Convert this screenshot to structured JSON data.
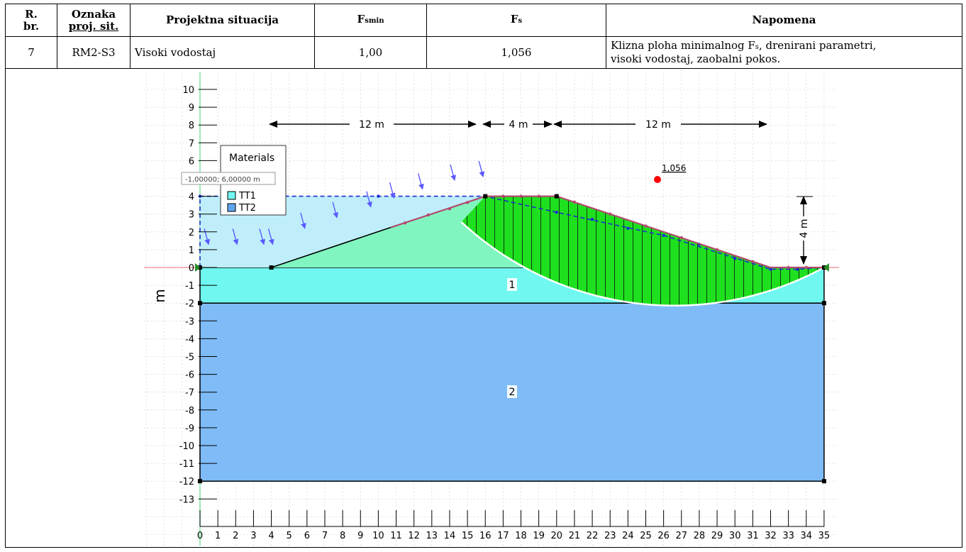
{
  "table": {
    "headers": {
      "rbr_line1": "R.",
      "rbr_line2": "br.",
      "oznaka_line1": "Oznaka",
      "oznaka_line2": "proj. sit.",
      "situacija": "Projektna situacija",
      "fsmin_main": "F",
      "fsmin_sub": "smin",
      "fs_main": "F",
      "fs_sub": "s",
      "napomena": "Napomena"
    },
    "row": {
      "rbr": "7",
      "oznaka": "RM2-S3",
      "situacija": "Visoki vodostaj",
      "fsmin": "1,00",
      "fs": "1,056",
      "napomena_line1_a": "Klizna ploha minimalnog F",
      "napomena_line1_sub": "s",
      "napomena_line1_b": ", drenirani parametri,",
      "napomena_line2": "visoki vodostaj, zaobalni pokos."
    }
  },
  "figure": {
    "axis_unit": "m",
    "x_ticks": [
      "0",
      "1",
      "2",
      "3",
      "4",
      "5",
      "6",
      "7",
      "8",
      "9",
      "10",
      "11",
      "12",
      "13",
      "14",
      "15",
      "16",
      "17",
      "18",
      "19",
      "20",
      "21",
      "22",
      "23",
      "24",
      "25",
      "26",
      "27",
      "28",
      "29",
      "30",
      "31",
      "32",
      "33",
      "34",
      "35"
    ],
    "y_ticks": [
      "10",
      "9",
      "8",
      "7",
      "6",
      "5",
      "4",
      "3",
      "2",
      "1",
      "0",
      "-1",
      "-2",
      "-3",
      "-4",
      "-5",
      "-6",
      "-7",
      "-8",
      "-9",
      "-10",
      "-11",
      "-12",
      "-13"
    ],
    "dim_top_left": "12 m",
    "dim_top_mid": "4 m",
    "dim_top_right": "12 m",
    "dim_right": "4 m",
    "fs_label": "1,056",
    "region_label_1": "1",
    "region_label_2": "2",
    "coord_tooltip": "-1,00000; 6,00000 m",
    "legend": {
      "title": "Materials",
      "items": [
        {
          "name": "TT1",
          "color": "#6ff7f0"
        },
        {
          "name": "TT2",
          "color": "#5fa6ef"
        }
      ]
    },
    "colors": {
      "tt1": "#6ff7f0",
      "tt2": "#7fbcf7",
      "water": "#bfeefa",
      "embankment": "#80f5c0",
      "slip_mass": "#1fe01f",
      "slip_point": "#ff0000"
    }
  }
}
